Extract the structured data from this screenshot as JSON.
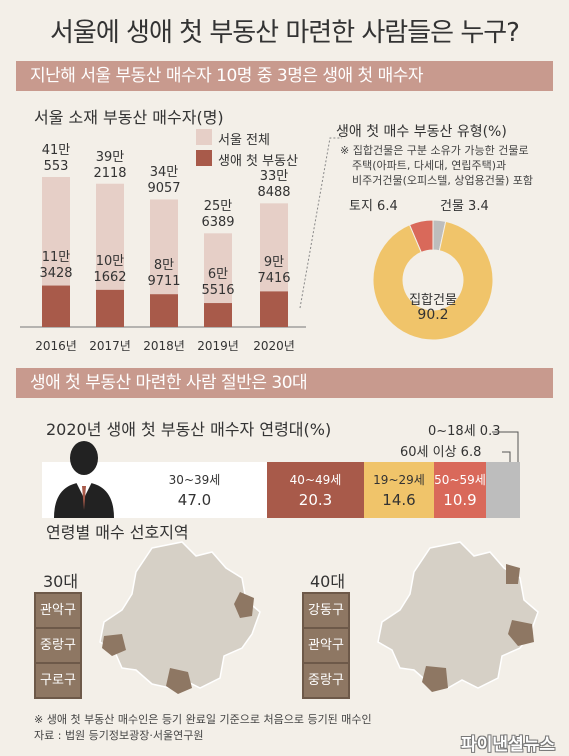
{
  "title": "서울에 생애 첫 부동산 마련한 사람들은 누구?",
  "banner1": "지난해 서울 부동산 매수자 10명 중 3명은 생애 첫 매수자",
  "bar_section": {
    "title": "서울 소재 부동산 매수자(명)",
    "legend_total": "서울 전체",
    "legend_first": "생애 첫 부동산",
    "bars": [
      {
        "year": "2016년",
        "total_top": "41만",
        "total_bottom": "553",
        "first_top": "11만",
        "first_bottom": "3428"
      },
      {
        "year": "2017년",
        "total_top": "39만",
        "total_bottom": "2118",
        "first_top": "10만",
        "first_bottom": "1662"
      },
      {
        "year": "2018년",
        "total_top": "34만",
        "total_bottom": "9057",
        "first_top": "8만",
        "first_bottom": "9711"
      },
      {
        "year": "2019년",
        "total_top": "25만",
        "total_bottom": "6389",
        "first_top": "6만",
        "first_bottom": "5516"
      },
      {
        "year": "2020년",
        "total_top": "33만",
        "total_bottom": "8488",
        "first_top": "9만",
        "first_bottom": "7416"
      }
    ]
  },
  "donut_section": {
    "title": "생애 첫 매수 부동산 유형(%)",
    "note1": "※ 집합건물은 구분 소유가 가능한 건물로",
    "note2": "주택(아파트, 다세대, 연립주택)과",
    "note3": "비주거건물(오피스텔, 상업용건물) 포함",
    "land_label": "토지 6.4",
    "building_label": "건물 3.4",
    "collective_label": "집합건물",
    "collective_value": "90.2"
  },
  "banner2": "생애 첫 부동산 마련한 사람 절반은 30대",
  "age_section": {
    "title": "2020년 생애 첫 부동산 매수자 연령대(%)",
    "segments": [
      {
        "label": "30~39세",
        "value": "47.0"
      },
      {
        "label": "40~49세",
        "value": "20.3"
      },
      {
        "label": "19~29세",
        "value": "14.6"
      },
      {
        "label": "50~59세",
        "value": "10.9"
      }
    ],
    "callout_top": "0~18세 0.3",
    "callout_bottom": "60세 이상 6.8"
  },
  "region_section": {
    "title": "연령별 매수 선호지역",
    "maps": [
      {
        "label": "30대",
        "districts": [
          "관악구",
          "중랑구",
          "구로구"
        ]
      },
      {
        "label": "40대",
        "districts": [
          "강동구",
          "관악구",
          "중랑구"
        ]
      }
    ]
  },
  "footnote1": "※ 생애 첫 부동산 매수인은 등기 완료일 기준으로 처음으로 등기된 매수인",
  "footnote2": "자료 : 법원 등기정보광장·서울연구원",
  "logo": "파이낸셜뉴스",
  "colors": {
    "background": "#f3efe8",
    "banner": "#c89a8e",
    "total_bar": "#e6cfc7",
    "first_bar": "#a85a4a",
    "donut_collective": "#f0c46a",
    "donut_land": "#d9695a",
    "donut_building": "#bdbdbd",
    "age_30s": "#ffffff",
    "age_40s": "#a85a4a",
    "age_20s": "#f0c46a",
    "age_50s": "#d9695a",
    "age_other": "#bdbdbd",
    "map_fill": "#d6d0c6",
    "map_highlight": "#8e7763"
  },
  "chart_data": [
    {
      "type": "bar",
      "title": "서울 소재 부동산 매수자(명)",
      "categories": [
        "2016년",
        "2017년",
        "2018년",
        "2019년",
        "2020년"
      ],
      "series": [
        {
          "name": "서울 전체",
          "values": [
            410553,
            392118,
            349057,
            256389,
            338488
          ]
        },
        {
          "name": "생애 첫 부동산",
          "values": [
            113428,
            101662,
            89711,
            65516,
            97416
          ]
        }
      ]
    },
    {
      "type": "pie",
      "title": "생애 첫 매수 부동산 유형(%)",
      "categories": [
        "집합건물",
        "토지",
        "건물"
      ],
      "values": [
        90.2,
        6.4,
        3.4
      ]
    },
    {
      "type": "bar",
      "title": "2020년 생애 첫 부동산 매수자 연령대(%)",
      "categories": [
        "30~39세",
        "40~49세",
        "19~29세",
        "50~59세",
        "60세 이상",
        "0~18세"
      ],
      "values": [
        47.0,
        20.3,
        14.6,
        10.9,
        6.8,
        0.3
      ]
    }
  ]
}
